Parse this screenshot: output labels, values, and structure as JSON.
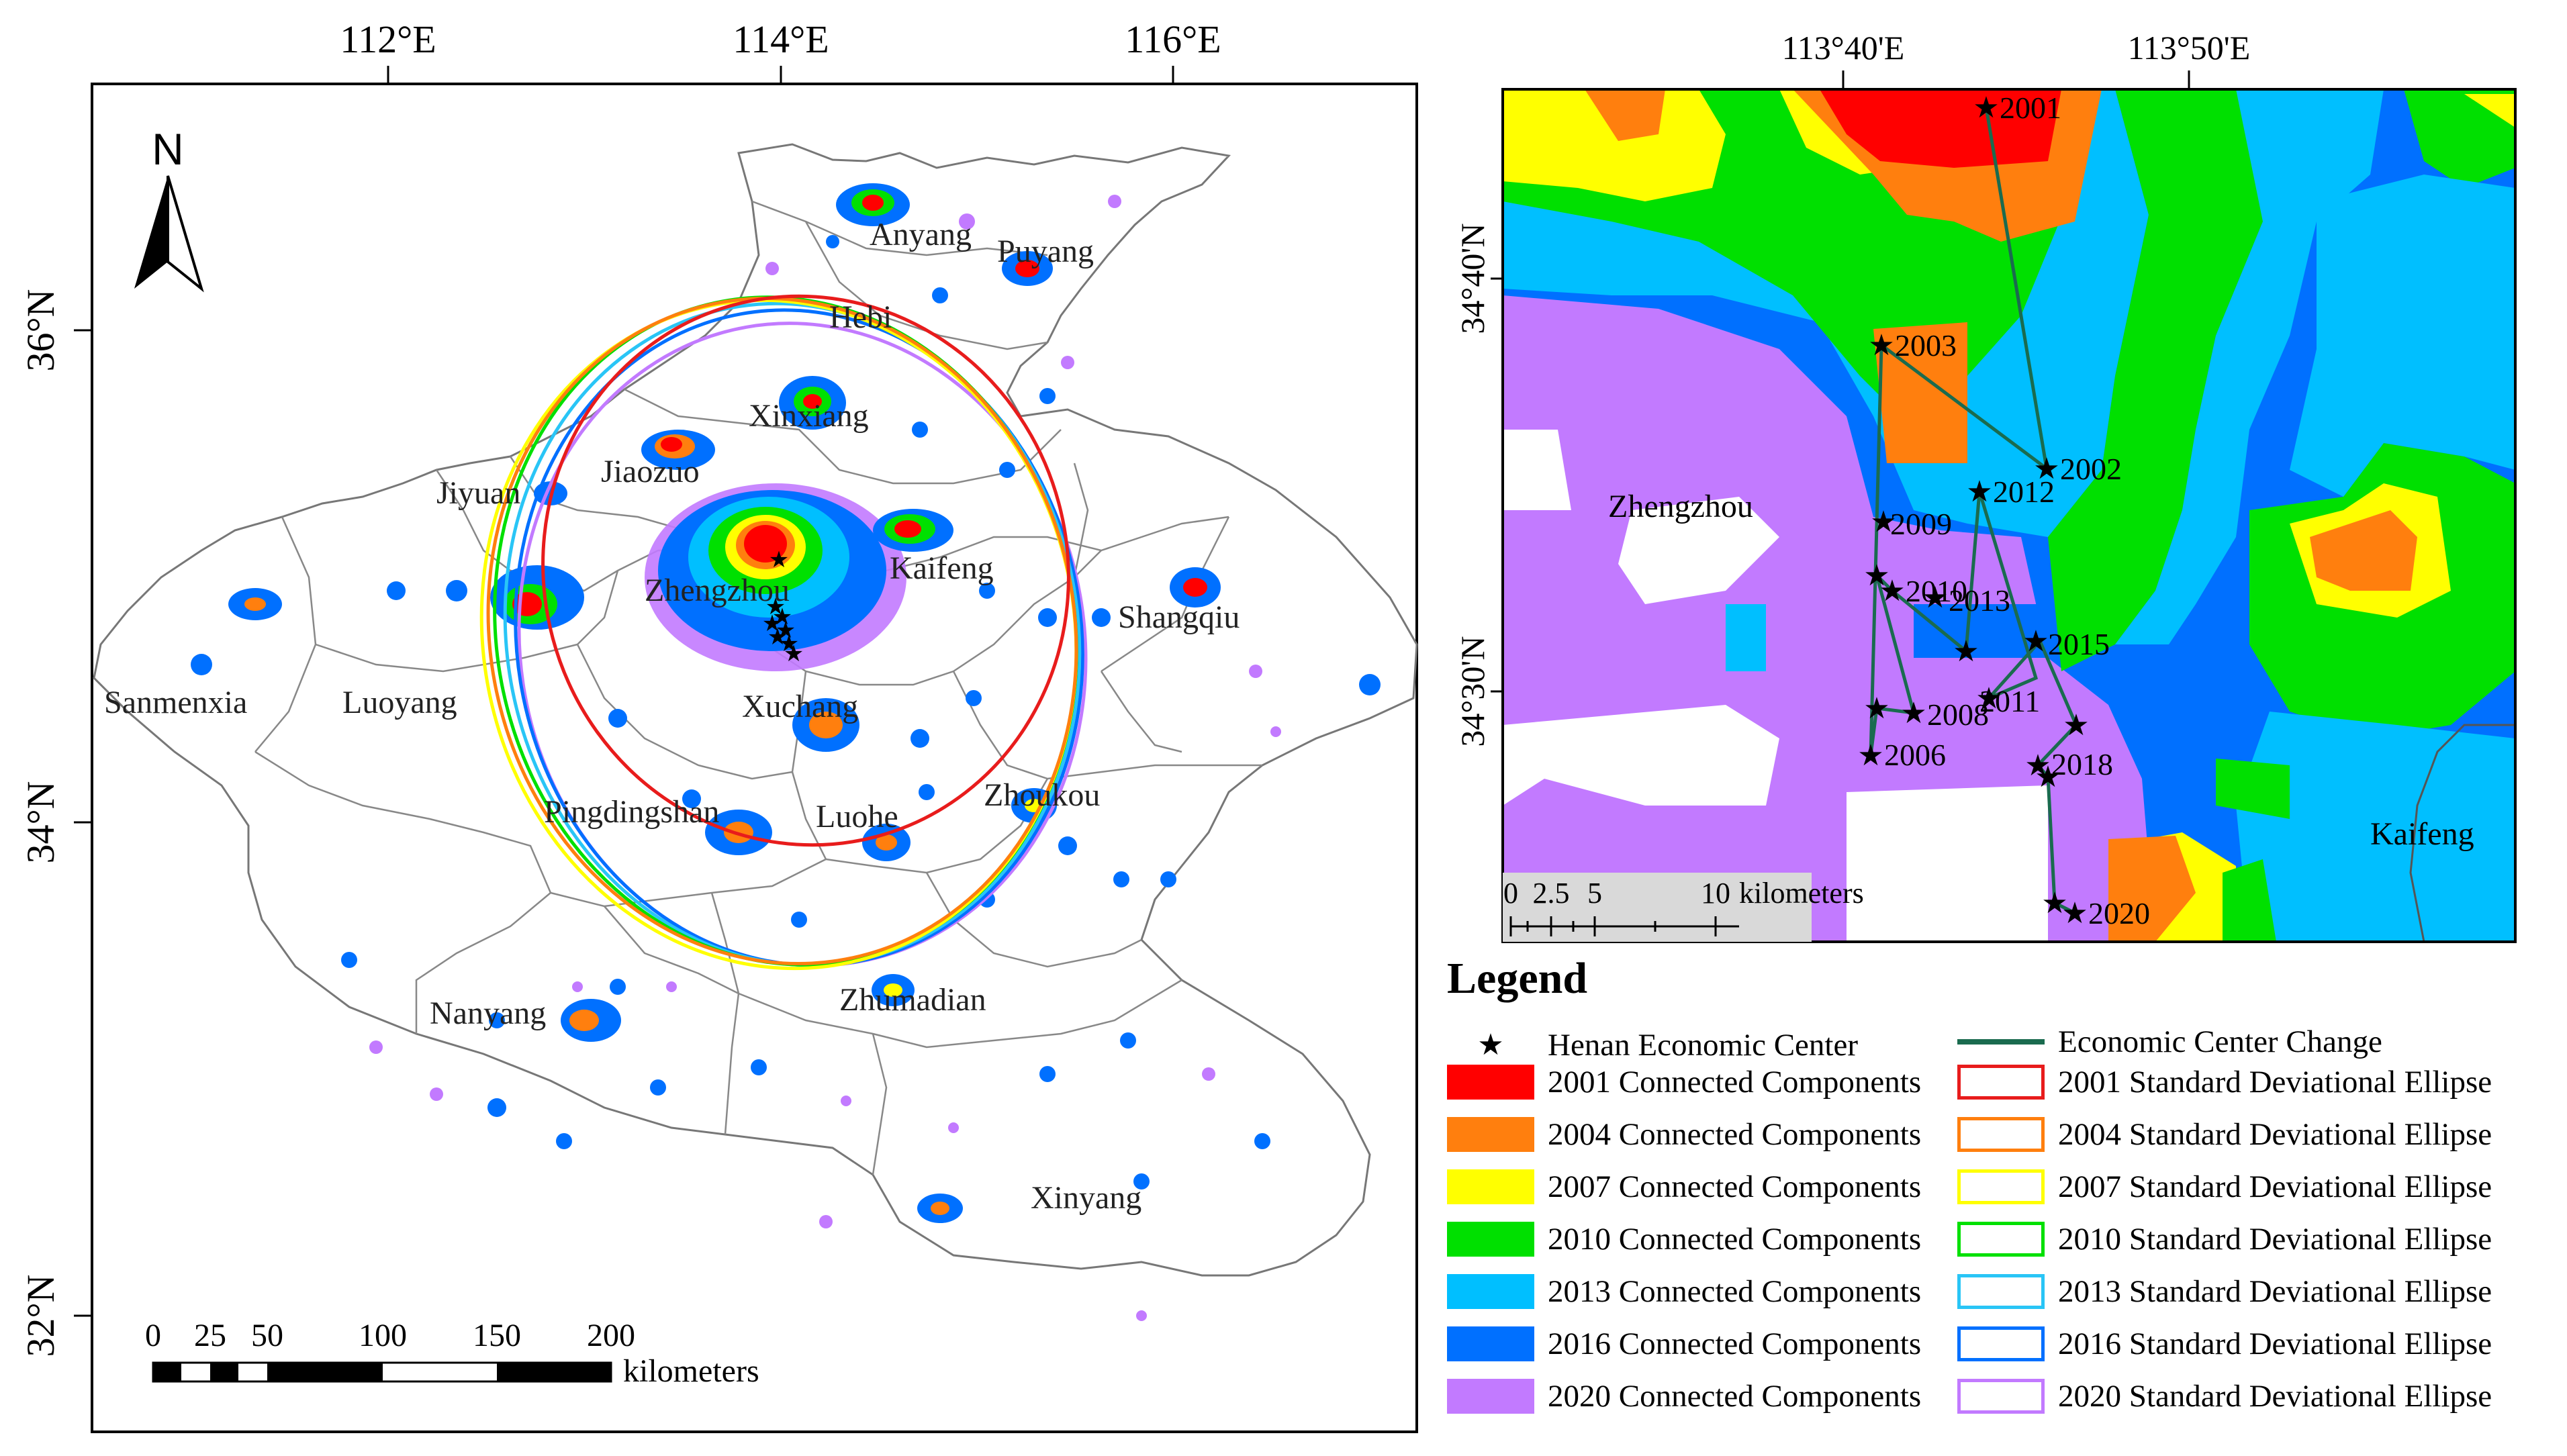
{
  "left_map": {
    "lon_labels": [
      "112°E",
      "114°E",
      "116°E"
    ],
    "lat_labels": [
      "36°N",
      "34°N",
      "32°N"
    ],
    "north_label": "N",
    "scalebar": {
      "ticks": [
        "0",
        "25",
        "50",
        "100",
        "150",
        "200"
      ],
      "unit": "kilometers"
    },
    "cities": [
      "Anyang",
      "Puyang",
      "Hebi",
      "Xinxiang",
      "Jiaozuo",
      "Jiyuan",
      "Zhengzhou",
      "Kaifeng",
      "Shangqiu",
      "Sanmenxia",
      "Luoyang",
      "Xuchang",
      "Pingdingshan",
      "Luohe",
      "Zhoukou",
      "Nanyang",
      "Zhumadian",
      "Xinyang"
    ]
  },
  "right_map": {
    "lon_labels": [
      "113°40'E",
      "113°50'E"
    ],
    "lat_labels": [
      "34°40'N",
      "34°30'N"
    ],
    "city_labels": [
      "Zhengzhou",
      "Kaifeng"
    ],
    "scalebar": {
      "ticks": [
        "0",
        "2.5",
        "5",
        "10"
      ],
      "unit": "kilometers"
    },
    "economic_center_path": [
      {
        "year": "2001"
      },
      {
        "year": "2002"
      },
      {
        "year": "2003"
      },
      {
        "year": "2006"
      },
      {
        "year": "2008"
      },
      {
        "year": "2009"
      },
      {
        "year": "2010"
      },
      {
        "year": "2011"
      },
      {
        "year": "2012"
      },
      {
        "year": "2013"
      },
      {
        "year": "2015"
      },
      {
        "year": "2018"
      },
      {
        "year": "2020"
      }
    ]
  },
  "legend": {
    "title": "Legend",
    "center_label": "Henan Economic Center",
    "change_label": "Economic Center Change",
    "components": [
      {
        "label": "2001 Connected Components",
        "color": "#ff0000"
      },
      {
        "label": "2004 Connected Components",
        "color": "#ff7f0e"
      },
      {
        "label": "2007 Connected Components",
        "color": "#ffff00"
      },
      {
        "label": "2010 Connected Components",
        "color": "#00e000"
      },
      {
        "label": "2013 Connected Components",
        "color": "#00bfff"
      },
      {
        "label": "2016 Connected Components",
        "color": "#0070ff"
      },
      {
        "label": "2020 Connected Components",
        "color": "#c27aff"
      }
    ],
    "ellipses": [
      {
        "label": "2001 Standard Deviational Ellipse",
        "color": "#e81c1c"
      },
      {
        "label": "2004 Standard Deviational Ellipse",
        "color": "#ff7f0e"
      },
      {
        "label": "2007 Standard Deviational Ellipse",
        "color": "#ffff00"
      },
      {
        "label": "2010 Standard Deviational Ellipse",
        "color": "#00e000"
      },
      {
        "label": "2013 Standard Deviational Ellipse",
        "color": "#29c5f6"
      },
      {
        "label": "2016 Standard Deviational Ellipse",
        "color": "#0070ff"
      },
      {
        "label": "2020 Standard Deviational Ellipse",
        "color": "#c27aff"
      }
    ]
  }
}
